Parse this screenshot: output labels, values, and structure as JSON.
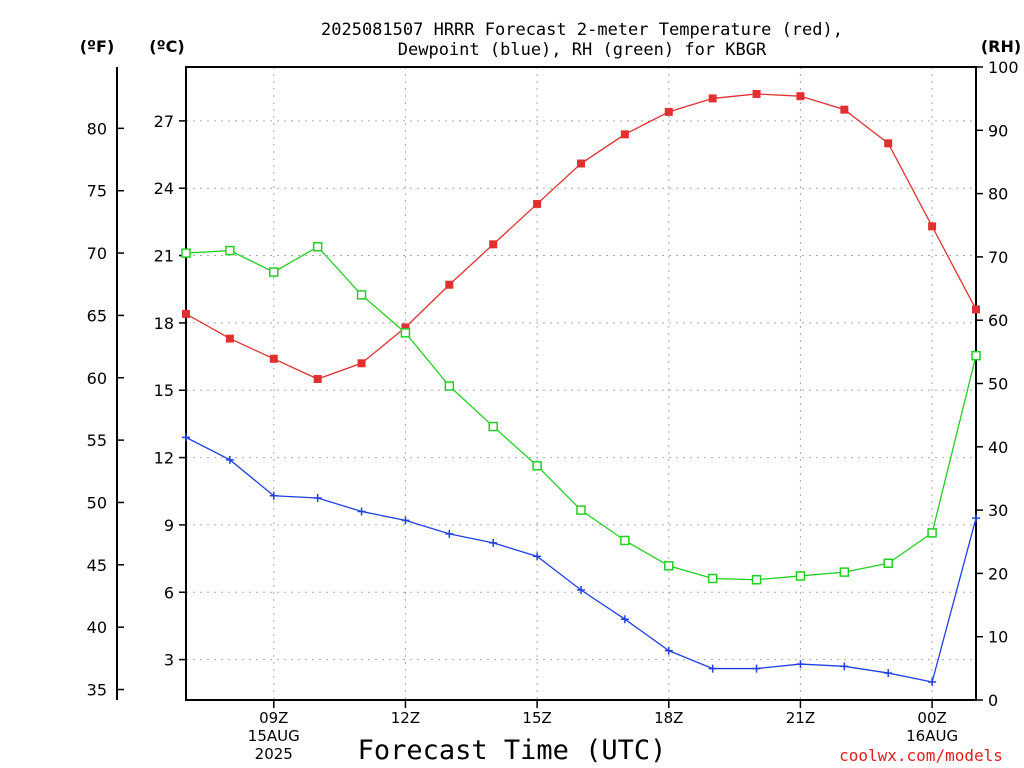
{
  "chart_data": {
    "type": "line",
    "title": "2025081507 HRRR Forecast 2-meter Temperature (red),",
    "subtitle": "Dewpoint (blue), RH (green) for KBGR",
    "xlabel": "Forecast Time (UTC)",
    "credit": "coolwx.com/models",
    "units": {
      "left_outer": "(ºF)",
      "left_inner": "(ºC)",
      "right": "(RH)"
    },
    "x_hours": [
      7,
      8,
      9,
      10,
      11,
      12,
      13,
      14,
      15,
      16,
      17,
      18,
      19,
      20,
      21,
      22,
      23,
      24,
      25
    ],
    "x_ticks": [
      {
        "hour": 9,
        "lines": [
          "09Z",
          "15AUG",
          "2025"
        ]
      },
      {
        "hour": 12,
        "lines": [
          "12Z"
        ]
      },
      {
        "hour": 15,
        "lines": [
          "15Z"
        ]
      },
      {
        "hour": 18,
        "lines": [
          "18Z"
        ]
      },
      {
        "hour": 21,
        "lines": [
          "21Z"
        ]
      },
      {
        "hour": 24,
        "lines": [
          "00Z",
          "16AUG"
        ]
      }
    ],
    "celsius_ticks": [
      3,
      6,
      9,
      12,
      15,
      18,
      21,
      24,
      27
    ],
    "fahrenheit_ticks": [
      35,
      40,
      45,
      50,
      55,
      60,
      65,
      70,
      75,
      80
    ],
    "rh_ticks": [
      0,
      10,
      20,
      30,
      40,
      50,
      60,
      70,
      80,
      90,
      100
    ],
    "celsius_range": [
      1.2,
      29.4
    ],
    "rh_range": [
      0,
      100
    ],
    "grid": true,
    "series": [
      {
        "name": "Temperature (red)",
        "axis": "celsius",
        "color": "#e03030",
        "marker": "filled-square",
        "values": [
          18.4,
          17.3,
          16.4,
          15.5,
          16.2,
          17.8,
          19.7,
          21.5,
          23.3,
          25.1,
          26.4,
          27.4,
          28.0,
          28.2,
          28.1,
          27.5,
          26.0,
          22.3,
          18.6
        ]
      },
      {
        "name": "Dewpoint (blue)",
        "axis": "celsius",
        "color": "#2040e0",
        "marker": "plus",
        "values": [
          12.9,
          11.9,
          10.3,
          10.2,
          9.6,
          9.2,
          8.6,
          8.2,
          7.6,
          6.1,
          4.8,
          3.4,
          2.6,
          2.6,
          2.8,
          2.7,
          2.4,
          2.0,
          9.3
        ]
      },
      {
        "name": "RH (green)",
        "axis": "rh",
        "color": "#20d020",
        "marker": "open-square",
        "values": [
          70.6,
          71.0,
          67.6,
          71.6,
          64.0,
          58.0,
          49.6,
          43.2,
          37.0,
          30.0,
          25.2,
          21.2,
          19.2,
          19.0,
          19.6,
          20.2,
          21.6,
          26.4,
          54.4
        ]
      }
    ]
  }
}
